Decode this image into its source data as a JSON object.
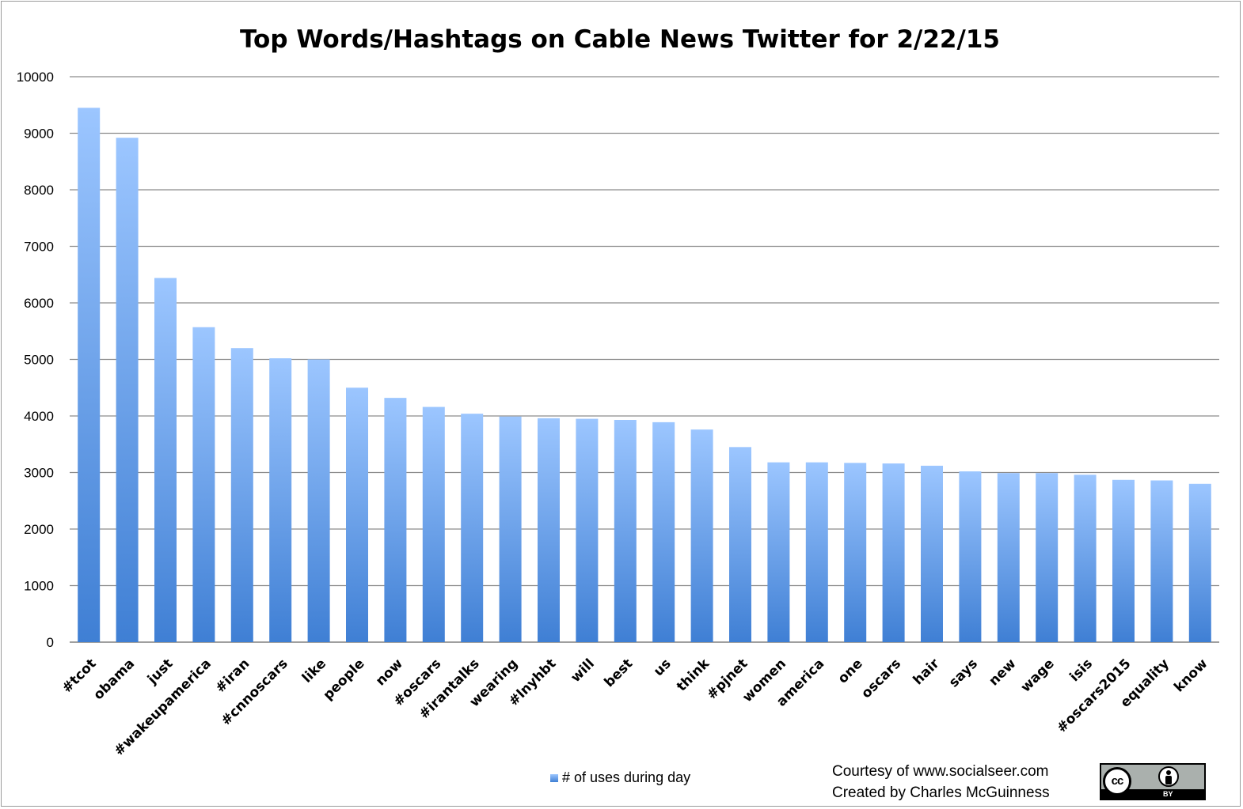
{
  "chart_data": {
    "type": "bar",
    "title": "Top Words/Hashtags on Cable News Twitter for 2/22/15",
    "xlabel": "",
    "ylabel": "",
    "ylim": [
      0,
      10000
    ],
    "yticks": [
      0,
      1000,
      2000,
      3000,
      4000,
      5000,
      6000,
      7000,
      8000,
      9000,
      10000
    ],
    "grid": true,
    "legend_position": "bottom",
    "categories": [
      "#tcot",
      "obama",
      "just",
      "#wakeupamerica",
      "#iran",
      "#cnnoscars",
      "like",
      "people",
      "now",
      "#oscars",
      "#irantalks",
      "wearing",
      "#lnyhbt",
      "will",
      "best",
      "us",
      "think",
      "#pjnet",
      "women",
      "america",
      "one",
      "oscars",
      "hair",
      "says",
      "new",
      "wage",
      "isis",
      "#oscars2015",
      "equality",
      "know"
    ],
    "series": [
      {
        "name": "# of uses during day",
        "values": [
          9450,
          8920,
          6440,
          5570,
          5200,
          5020,
          5000,
          4500,
          4320,
          4160,
          4040,
          3990,
          3960,
          3950,
          3930,
          3890,
          3760,
          3450,
          3180,
          3180,
          3170,
          3160,
          3120,
          3020,
          2990,
          2990,
          2960,
          2870,
          2860,
          2800
        ]
      }
    ],
    "colors": {
      "bar_top": "#9cc6ff",
      "bar_bottom": "#3f7fd4",
      "grid": "#8c8c8c"
    }
  },
  "footer": {
    "courtesy": "Courtesy of www.socialseer.com",
    "created_by": "Created by Charles McGuinness"
  },
  "license_badge": {
    "cc_text": "cc",
    "by_text": "BY",
    "icons": [
      "cc-icon",
      "by-person-icon"
    ]
  }
}
